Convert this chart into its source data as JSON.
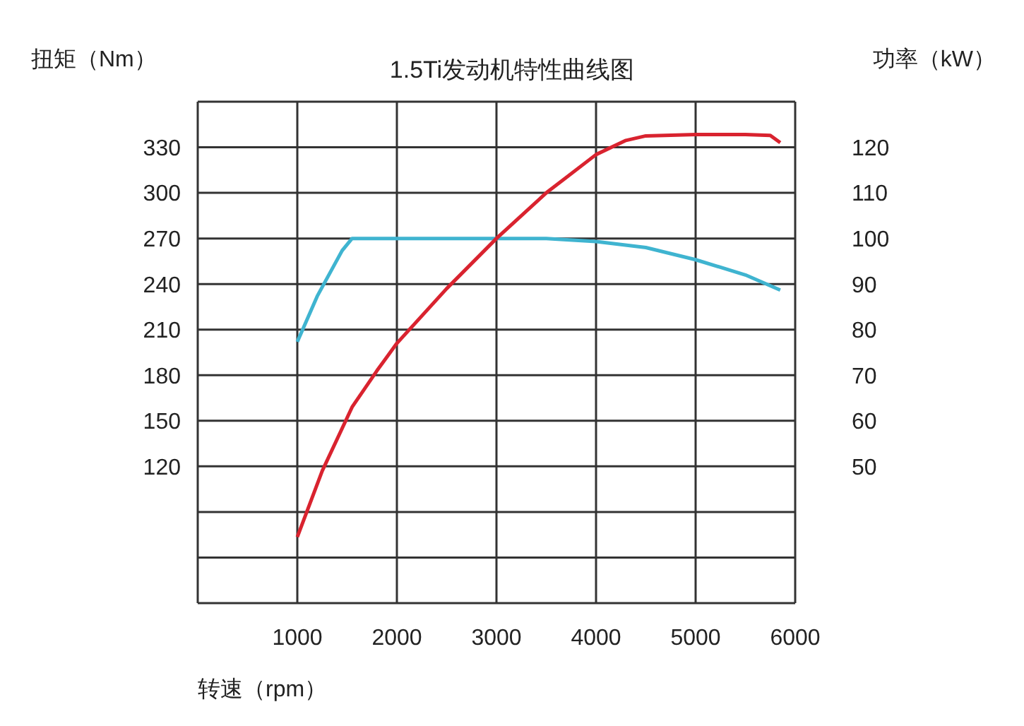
{
  "chart_data": {
    "type": "line",
    "title": "1.5Ti发动机特性曲线图",
    "xlabel": "转速（rpm）",
    "ylabel": "扭矩（Nm）",
    "y2label": "功率（kW）",
    "xlim": [
      0,
      6000
    ],
    "xticks": [
      {
        "value": 0,
        "label": null
      },
      1000,
      2000,
      3000,
      4000,
      5000,
      6000
    ],
    "ylim": [
      30,
      360
    ],
    "yticks": [
      {
        "value": 30,
        "label": null
      },
      {
        "value": 60,
        "label": null
      },
      {
        "value": 90,
        "label": null
      },
      120,
      150,
      180,
      210,
      240,
      270,
      300,
      330,
      {
        "value": 360,
        "label": null
      }
    ],
    "y2lim": [
      20,
      130
    ],
    "y2ticks": [
      50,
      60,
      70,
      80,
      90,
      100,
      110,
      120
    ],
    "grid": true,
    "marker": "none",
    "line_style": "solid",
    "series": [
      {
        "color": "#3fb4d0",
        "x": [
          1000,
          1200,
          1450,
          1550,
          2000,
          3000,
          3500,
          4000,
          4500,
          5000,
          5500,
          5850
        ],
        "values": [
          202,
          232,
          262,
          270,
          270,
          270,
          270,
          268,
          264,
          256,
          246,
          236
        ]
      },
      {
        "color": "#d9232f",
        "axis": "y2",
        "x": [
          1000,
          1250,
          1550,
          1800,
          2000,
          2500,
          3000,
          3500,
          4000,
          4300,
          4500,
          5000,
          5500,
          5750,
          5850
        ],
        "values": [
          34.5,
          49,
          63,
          71,
          77,
          89,
          100,
          110,
          118.4,
          121.5,
          122.5,
          122.8,
          122.8,
          122.6,
          121
        ]
      }
    ]
  }
}
